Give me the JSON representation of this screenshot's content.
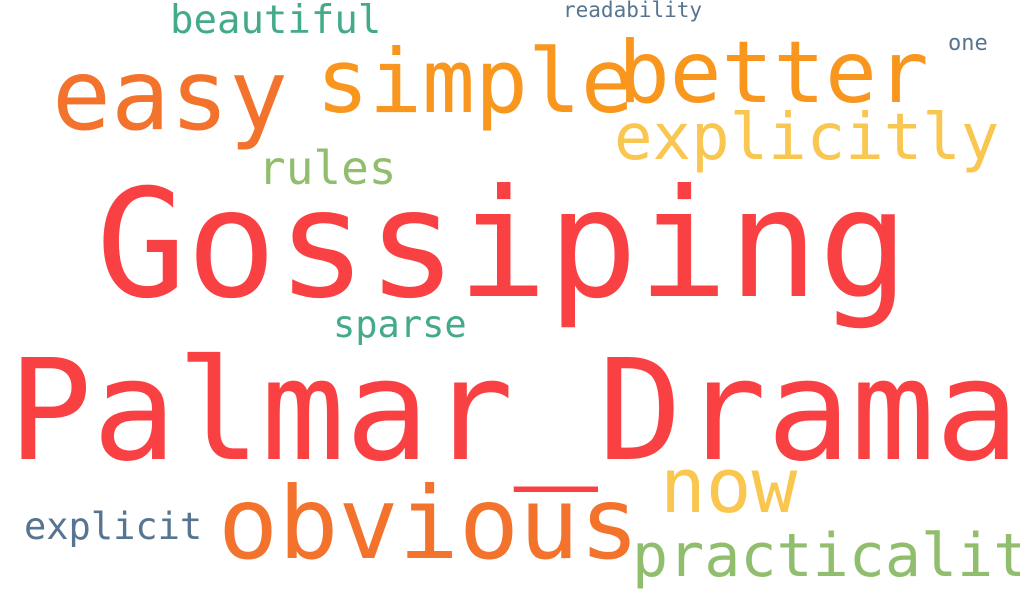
{
  "words": {
    "gossiping": {
      "text": "Gossiping",
      "color": "#f94144"
    },
    "palmar_drama": {
      "text": "Palmar_Drama",
      "color": "#f94144"
    },
    "obvious": {
      "text": "obvious",
      "color": "#f3722c"
    },
    "easy": {
      "text": "easy",
      "color": "#f3722c"
    },
    "simple": {
      "text": "simple",
      "color": "#f8961e"
    },
    "better": {
      "text": "better",
      "color": "#f8961e"
    },
    "explicitly": {
      "text": "explicitly",
      "color": "#f9c74f"
    },
    "now": {
      "text": "now",
      "color": "#f9c74f"
    },
    "practicality": {
      "text": "practicality",
      "color": "#90be6d"
    },
    "rules": {
      "text": "rules",
      "color": "#90be6d"
    },
    "beautiful": {
      "text": "beautiful",
      "color": "#43aa8b"
    },
    "sparse": {
      "text": "sparse",
      "color": "#43aa8b"
    },
    "explicit": {
      "text": "explicit",
      "color": "#577590"
    },
    "readability": {
      "text": "readability",
      "color": "#577590"
    },
    "one": {
      "text": "one",
      "color": "#577590"
    }
  }
}
